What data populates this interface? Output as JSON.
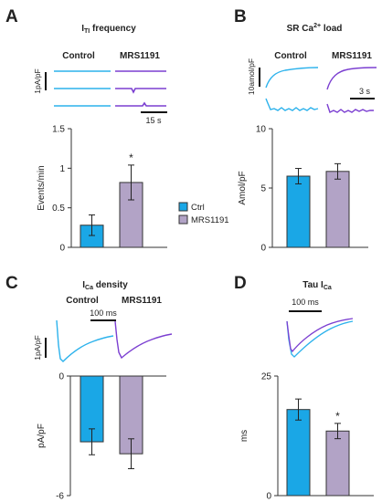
{
  "colors": {
    "ctrl": "#1aa7e6",
    "mrs": "#b2a3c6",
    "ctrl_trace": "#2cb2ec",
    "mrs_trace": "#7b3fd1",
    "axis": "#333333"
  },
  "chart_data": [
    {
      "panel": "A",
      "type": "bar",
      "title": "I_TI frequency",
      "title_main": "I",
      "title_sub": "TI",
      "title_rest": " frequency",
      "categories": [
        "Ctrl",
        "MRS1191"
      ],
      "values": [
        0.28,
        0.82
      ],
      "errors": [
        0.13,
        0.22
      ],
      "significance": [
        "",
        "*"
      ],
      "ylabel": "Events/min",
      "ylim": [
        0,
        1.5
      ],
      "yticks": [
        "0",
        "0.5",
        "1",
        "1.5"
      ],
      "trace_labels": [
        "Control",
        "MRS1191"
      ],
      "scalebar_y": "1pA/pF",
      "scalebar_x": "15 s"
    },
    {
      "panel": "B",
      "type": "bar",
      "title_main": "SR Ca",
      "title_sup": "2+",
      "title_rest": " load",
      "categories": [
        "Ctrl",
        "MRS1191"
      ],
      "values": [
        6.0,
        6.4
      ],
      "errors": [
        0.65,
        0.65
      ],
      "ylabel": "Amol/pF",
      "ylim": [
        0,
        10
      ],
      "yticks": [
        "0",
        "5",
        "10"
      ],
      "trace_labels": [
        "Control",
        "MRS1191"
      ],
      "scalebar_y": "10amol/pF",
      "scalebar_x": "3 s"
    },
    {
      "panel": "C",
      "type": "bar",
      "title_main": "I",
      "title_sub": "Ca",
      "title_rest": " density",
      "categories": [
        "Ctrl",
        "MRS1191"
      ],
      "values": [
        -3.3,
        -3.9
      ],
      "errors": [
        0.65,
        0.75
      ],
      "ylabel": "pA/pF",
      "ylim": [
        -6,
        0
      ],
      "yticks": [
        "0",
        "-6"
      ],
      "trace_labels": [
        "Control",
        "MRS1191"
      ],
      "scalebar_y": "1pA/pF",
      "scalebar_x": "100 ms"
    },
    {
      "panel": "D",
      "type": "bar",
      "title_main": "Tau I",
      "title_sub": "Ca",
      "title_rest": "",
      "categories": [
        "Ctrl",
        "MRS1191"
      ],
      "values": [
        18.0,
        13.5
      ],
      "errors": [
        2.2,
        1.6
      ],
      "significance": [
        "",
        "*"
      ],
      "ylabel": "ms",
      "ylim": [
        0,
        25
      ],
      "yticks": [
        "0",
        "25"
      ],
      "scalebar_x": "100 ms"
    }
  ],
  "legend": {
    "items": [
      "Ctrl",
      "MRS1191"
    ]
  }
}
